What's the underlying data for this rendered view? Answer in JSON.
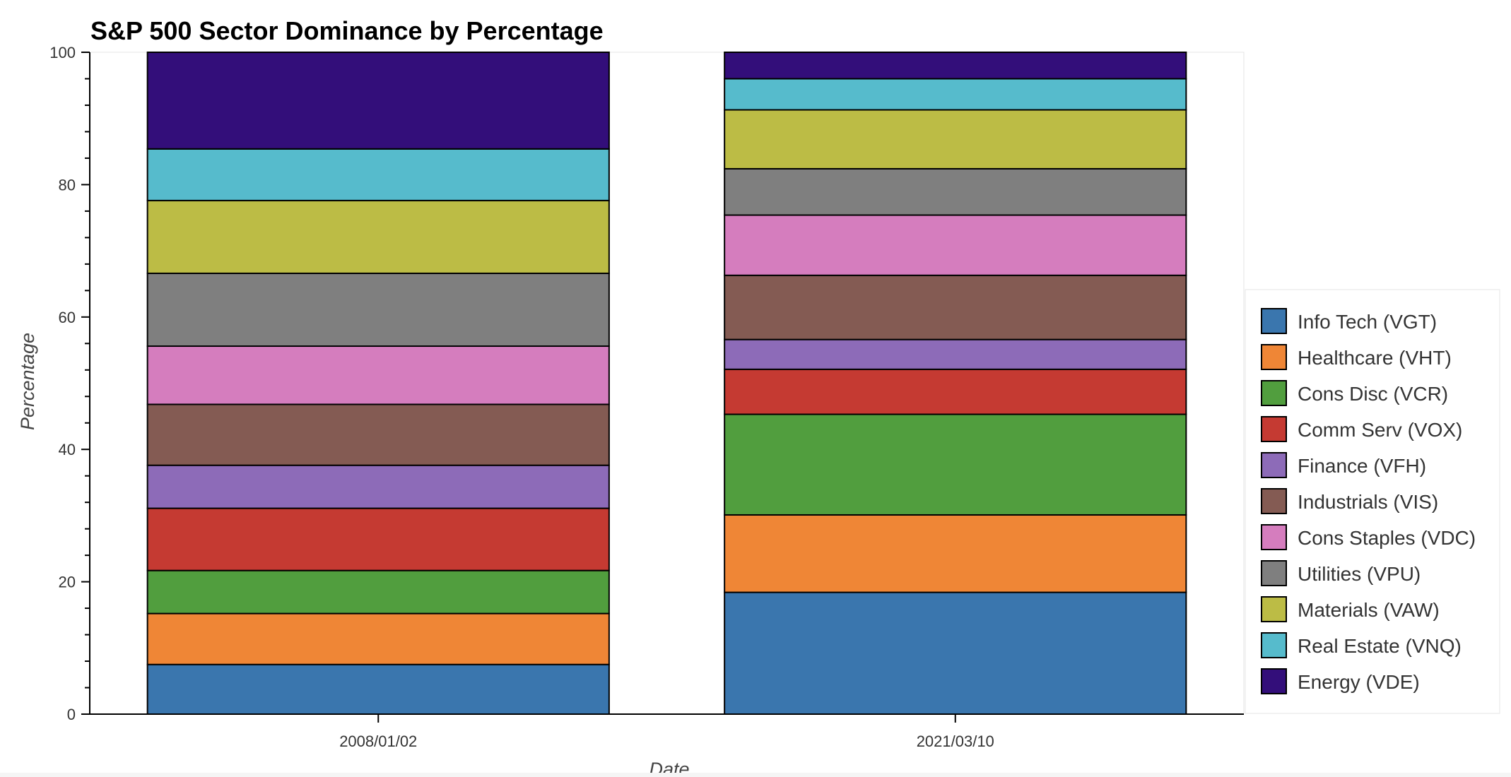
{
  "chart_data": {
    "type": "bar",
    "stacked": true,
    "title": "S&P 500 Sector Dominance by Percentage",
    "xlabel": "Date",
    "ylabel": "Percentage",
    "ylim": [
      0,
      100
    ],
    "y_ticks": [
      0,
      20,
      40,
      60,
      80,
      100
    ],
    "categories": [
      "2008/01/02",
      "2021/03/10"
    ],
    "legend_position": "right",
    "series": [
      {
        "name": "Info Tech (VGT)",
        "color": "#3a76ae",
        "values": [
          7.5,
          18.4
        ]
      },
      {
        "name": "Healthcare (VHT)",
        "color": "#ef8636",
        "values": [
          7.7,
          11.7
        ]
      },
      {
        "name": "Cons Disc (VCR)",
        "color": "#519e3e",
        "values": [
          6.5,
          15.2
        ]
      },
      {
        "name": "Comm Serv (VOX)",
        "color": "#c53a32",
        "values": [
          9.4,
          6.8
        ]
      },
      {
        "name": "Finance (VFH)",
        "color": "#8d6bb8",
        "values": [
          6.5,
          4.5
        ]
      },
      {
        "name": "Industrials (VIS)",
        "color": "#845b53",
        "values": [
          9.2,
          9.7
        ]
      },
      {
        "name": "Cons Staples (VDC)",
        "color": "#d57dbe",
        "values": [
          8.8,
          9.1
        ]
      },
      {
        "name": "Utilities (VPU)",
        "color": "#7f7f7f",
        "values": [
          11.0,
          7.0
        ]
      },
      {
        "name": "Materials (VAW)",
        "color": "#bcbc45",
        "values": [
          11.0,
          8.9
        ]
      },
      {
        "name": "Real Estate (VNQ)",
        "color": "#56bbcc",
        "values": [
          7.8,
          4.7
        ]
      },
      {
        "name": "Energy (VDE)",
        "color": "#330e7a",
        "values": [
          14.6,
          4.0
        ]
      }
    ]
  }
}
